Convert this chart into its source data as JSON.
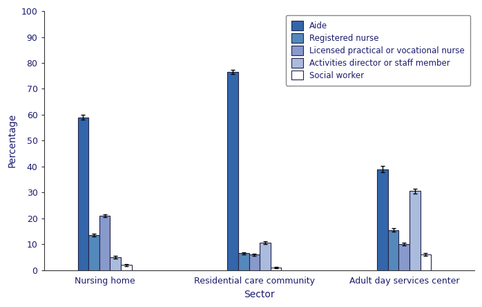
{
  "categories": [
    "Nursing home",
    "Residential care community",
    "Adult day services center"
  ],
  "staff_types": [
    "Aide",
    "Registered nurse",
    "Licensed practical or vocational nurse",
    "Activities director or staff member",
    "Social worker"
  ],
  "colors": [
    "#3366AA",
    "#5588BB",
    "#8899CC",
    "#AABBDD",
    "#FFFFFF"
  ],
  "bar_edge_color": "#222244",
  "values": [
    [
      59.0,
      13.5,
      21.0,
      5.0,
      2.0
    ],
    [
      76.5,
      6.5,
      6.0,
      10.5,
      1.0
    ],
    [
      39.0,
      15.5,
      10.0,
      30.5,
      6.0
    ]
  ],
  "errors": [
    [
      1.0,
      0.5,
      0.6,
      0.5,
      0.4
    ],
    [
      0.7,
      0.4,
      0.4,
      0.5,
      0.2
    ],
    [
      1.2,
      0.7,
      0.5,
      1.0,
      0.5
    ]
  ],
  "ylabel": "Percentage",
  "xlabel": "Sector",
  "ylim": [
    0,
    100
  ],
  "yticks": [
    0,
    10,
    20,
    30,
    40,
    50,
    60,
    70,
    80,
    90,
    100
  ],
  "legend_loc": "upper right",
  "bar_width": 0.115,
  "group_centers": [
    1.0,
    2.6,
    4.2
  ],
  "xlim": [
    0.35,
    4.95
  ],
  "figsize": [
    6.98,
    4.44
  ],
  "dpi": 100
}
